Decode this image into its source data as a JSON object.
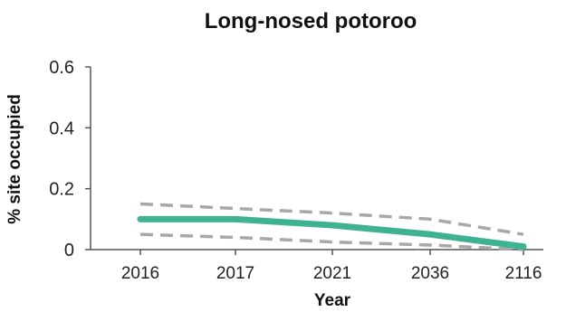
{
  "chart_data": {
    "type": "line",
    "title": "Long-nosed potoroo",
    "xlabel": "Year",
    "ylabel": "% site occupied",
    "categories": [
      "2016",
      "2017",
      "2021",
      "2036",
      "2116"
    ],
    "ylim": [
      0,
      0.6
    ],
    "yticks": [
      0,
      0.2,
      0.4,
      0.6
    ],
    "ytick_labels": [
      "0",
      "0.2",
      "0.4",
      "0.6"
    ],
    "grid": false,
    "series": [
      {
        "role": "estimate",
        "values": [
          0.1,
          0.1,
          0.08,
          0.05,
          0.01
        ],
        "color": "#3fb391",
        "style": "solid"
      },
      {
        "role": "upper-bound",
        "values": [
          0.15,
          0.135,
          0.12,
          0.1,
          0.05
        ],
        "color": "#a8a8a8",
        "style": "dashed"
      },
      {
        "role": "lower-bound",
        "values": [
          0.05,
          0.04,
          0.025,
          0.015,
          0.0
        ],
        "color": "#a8a8a8",
        "style": "dashed"
      }
    ]
  },
  "colors": {
    "axis": "#555555",
    "text": "#111111"
  }
}
